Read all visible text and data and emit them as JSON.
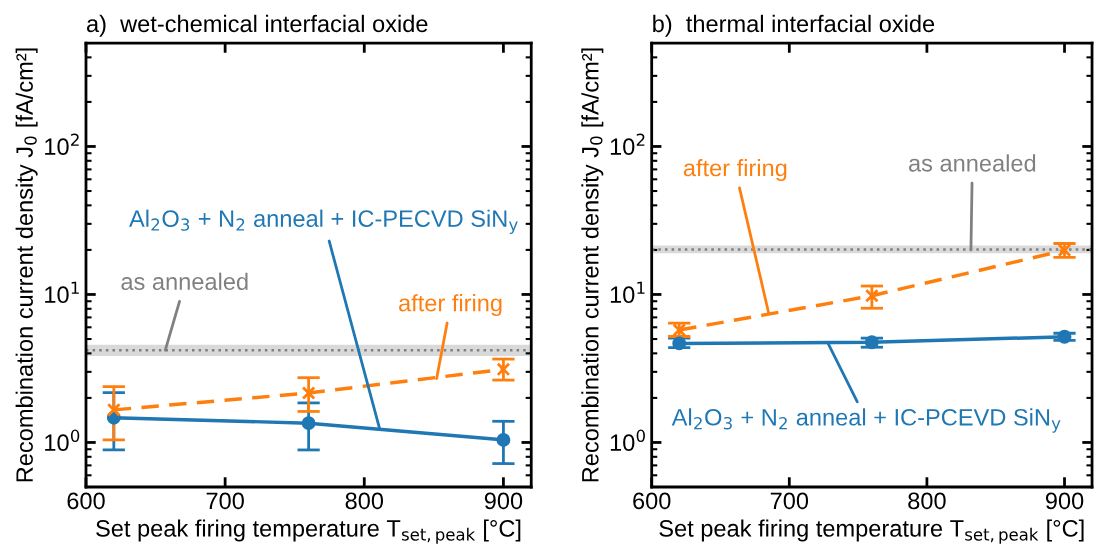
{
  "chart_data": [
    {
      "type": "line",
      "title": "a)  wet-chemical interfacial oxide",
      "xlabel": "Set peak firing temperature T$_{set,peak}$ [°C]",
      "ylabel": "Recombination current density J$_{0}$ [fA/cm²]",
      "x": [
        620,
        760,
        900
      ],
      "log": "y",
      "xlim": [
        600,
        920
      ],
      "ylim": [
        0.5,
        500
      ],
      "xticks": [
        600,
        700,
        800,
        900
      ],
      "yticks": [
        {
          "value": 1,
          "label": "10$^{0}$"
        },
        {
          "value": 10,
          "label": "10$^{1}$"
        },
        {
          "value": 100,
          "label": "10$^{2}$"
        }
      ],
      "series": [
        {
          "color": "#1f77b4",
          "values": [
            1.47,
            1.35,
            1.04
          ],
          "errors": [
            [
              0.89,
              2.17
            ],
            [
              0.89,
              1.85
            ],
            [
              0.72,
              1.39
            ]
          ],
          "marker": "circle",
          "line_style": "solid"
        },
        {
          "color": "#ff7f0e",
          "values": [
            1.66,
            2.16,
            3.12
          ],
          "errors": [
            [
              1.04,
              2.38
            ],
            [
              1.62,
              2.74
            ],
            [
              2.64,
              3.66
            ]
          ],
          "marker": "cross",
          "line_style": "dashed"
        }
      ],
      "ref_lines": [
        {
          "axis": "y",
          "value": 4.2,
          "color": "#808080",
          "line_style": "dotted"
        }
      ],
      "bands": [
        {
          "axis": "y",
          "from": 3.84,
          "to": 4.58,
          "color": "#d9d9d9"
        }
      ],
      "annotations": [
        {
          "text": "Al$_{2}$O$_{3}$ + N$_{2}$ anneal + IC-PECVD SiN$_{y}$",
          "x": 811,
          "y": 1.24
        },
        {
          "text": "after firing",
          "x": 852,
          "y": 2.7
        },
        {
          "text": "as annealed",
          "x": 657,
          "y": 4.2
        }
      ]
    },
    {
      "type": "line",
      "title": "b)  thermal interfacial oxide",
      "xlabel": "Set peak firing temperature T$_{set,peak}$ [°C]",
      "ylabel": "Recombination current density J$_{0}$ [fA/cm²]",
      "x": [
        620,
        760,
        900
      ],
      "log": "y",
      "xlim": [
        600,
        920
      ],
      "ylim": [
        0.5,
        500
      ],
      "xticks": [
        600,
        700,
        800,
        900
      ],
      "yticks": [
        {
          "value": 1,
          "label": "10$^{0}$"
        },
        {
          "value": 10,
          "label": "10$^{1}$"
        },
        {
          "value": 100,
          "label": "10$^{2}$"
        }
      ],
      "series": [
        {
          "color": "#1f77b4",
          "values": [
            4.67,
            4.75,
            5.18
          ],
          "errors": [
            [
              4.37,
              5.07
            ],
            [
              4.4,
              5.07
            ],
            [
              4.9,
              5.47
            ]
          ],
          "marker": "circle",
          "line_style": "solid"
        },
        {
          "color": "#ff7f0e",
          "values": [
            5.75,
            9.8,
            19.9
          ],
          "errors": [
            [
              5.2,
              6.4
            ],
            [
              8.07,
              11.4
            ],
            [
              17.8,
              22.1
            ]
          ],
          "marker": "cross",
          "line_style": "dashed"
        }
      ],
      "ref_lines": [
        {
          "axis": "y",
          "value": 20.1,
          "color": "#808080",
          "line_style": "dotted"
        }
      ],
      "bands": [
        {
          "axis": "y",
          "from": 19.0,
          "to": 21.4,
          "color": "#d9d9d9"
        }
      ],
      "annotations": [
        {
          "text": "after firing",
          "x": 685,
          "y": 7.5
        },
        {
          "text": "as annealed",
          "x": 832,
          "y": 20
        },
        {
          "text": "Al$_{2}$O$_{3}$ + N$_{2}$ anneal + IC-PCEVD SiN$_{y}$",
          "x": 728,
          "y": 4.7
        }
      ]
    }
  ]
}
